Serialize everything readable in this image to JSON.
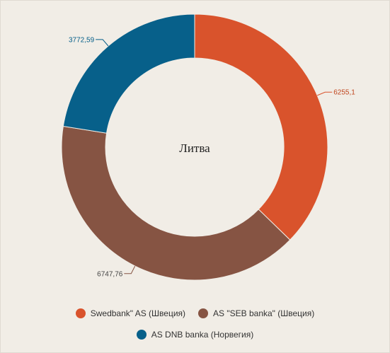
{
  "chart_data": {
    "type": "pie",
    "center_label": "Литва",
    "slices": [
      {
        "name": "Swedbank\" AS (Швеция)",
        "value": 6255.1,
        "label": "6255,1",
        "color": "#d9532c"
      },
      {
        "name": "AS \"SEB banka\" (Швеция)",
        "value": 6747.76,
        "label": "6747,76",
        "color": "#865443"
      },
      {
        "name": "AS DNB banka (Норвегия)",
        "value": 3772.59,
        "label": "3772,59",
        "color": "#07608a"
      }
    ],
    "legend_position": "bottom"
  }
}
